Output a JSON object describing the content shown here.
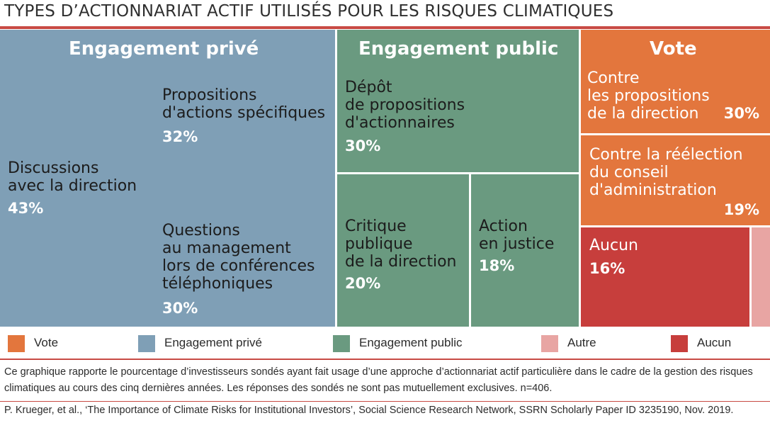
{
  "title": "TYPES D’ACTIONNARIAT ACTIF UTILISÉS POUR LES RISQUES CLIMATIQUES",
  "chart_data": {
    "type": "treemap",
    "groups": [
      {
        "name": "Engagement privé",
        "color": "#7f9fb6",
        "items": [
          {
            "label": "Discussions\navec la direction",
            "value": 43,
            "value_label": "43%"
          },
          {
            "label": "Propositions\nd'actions spécifiques",
            "value": 32,
            "value_label": "32%"
          },
          {
            "label": "Questions\nau management\nlors de conférences\ntéléphoniques",
            "value": 30,
            "value_label": "30%"
          }
        ]
      },
      {
        "name": "Engagement public",
        "color": "#6a9a80",
        "items": [
          {
            "label": "Dépôt\nde propositions\nd'actionnaires",
            "value": 30,
            "value_label": "30%"
          },
          {
            "label": "Critique\npublique\nde la direction",
            "value": 20,
            "value_label": "20%"
          },
          {
            "label": "Action\nen justice",
            "value": 18,
            "value_label": "18%"
          }
        ]
      },
      {
        "name": "Vote",
        "color": "#e3763d",
        "items": [
          {
            "label": "Contre\nles propositions\nde la direction",
            "value": 30,
            "value_label": "30%"
          },
          {
            "label": "Contre la réélection\ndu conseil\nd'administration",
            "value": 19,
            "value_label": "19%"
          }
        ]
      },
      {
        "name": "Aucun",
        "color": "#c73e3c",
        "items": [
          {
            "label": "Aucun",
            "value": 16,
            "value_label": "16%"
          }
        ]
      },
      {
        "name": "Autre",
        "color": "#e8a5a3",
        "items": []
      }
    ],
    "legend": [
      {
        "label": "Vote",
        "color": "#e3763d"
      },
      {
        "label": "Engagement privé",
        "color": "#7f9fb6"
      },
      {
        "label": "Engagement public",
        "color": "#6a9a80"
      },
      {
        "label": "Autre",
        "color": "#e8a5a3"
      },
      {
        "label": "Aucun",
        "color": "#c73e3c"
      }
    ],
    "legend_position": "bottom"
  },
  "note": "Ce graphique rapporte le pourcentage d’investisseurs sondés ayant fait usage d’une approche d’actionnariat actif particulière dans le cadre de la gestion des risques climatiques au cours des cinq dernières années. Les réponses des sondés ne sont pas mutuellement exclusives. n=406.",
  "source": "P. Krueger, et al., ‘The Importance of Climate Risks for Institutional Investors’, Social Science Research Network, SSRN Scholarly Paper ID 3235190, Nov. 2019."
}
